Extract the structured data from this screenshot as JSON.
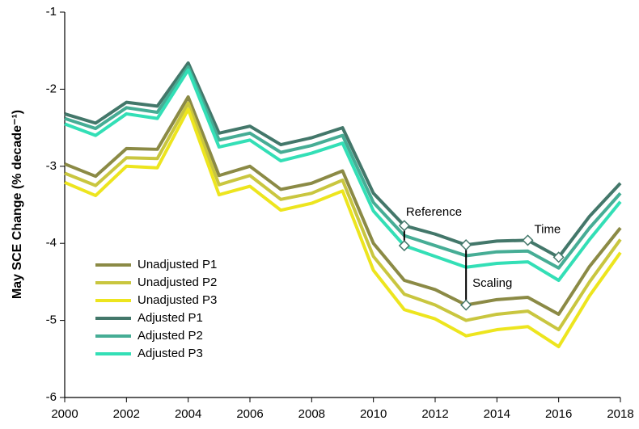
{
  "chart_data": {
    "type": "line",
    "ylabel": "May SCE Change (% decade⁻¹)",
    "x": [
      2000,
      2001,
      2002,
      2003,
      2004,
      2005,
      2006,
      2007,
      2008,
      2009,
      2010,
      2011,
      2012,
      2013,
      2014,
      2015,
      2016,
      2017,
      2018
    ],
    "xlim": [
      2000,
      2018
    ],
    "xticks": [
      2000,
      2002,
      2004,
      2006,
      2008,
      2010,
      2012,
      2014,
      2016,
      2018
    ],
    "ylim": [
      -6,
      -1
    ],
    "yticks": [
      -6,
      -5,
      -4,
      -3,
      -2,
      -1
    ],
    "legend": "lower left",
    "series": [
      {
        "name": "Unadjusted P1",
        "color": "#8b8a45",
        "values": [
          -2.97,
          -3.13,
          -2.77,
          -2.78,
          -2.1,
          -3.12,
          -3.0,
          -3.3,
          -3.22,
          -3.06,
          -4.0,
          -4.48,
          -4.6,
          -4.8,
          -4.73,
          -4.7,
          -4.92,
          -4.3,
          -3.8
        ]
      },
      {
        "name": "Unadjusted P2",
        "color": "#c9c63f",
        "values": [
          -3.09,
          -3.25,
          -2.89,
          -2.9,
          -2.18,
          -3.24,
          -3.12,
          -3.43,
          -3.35,
          -3.18,
          -4.17,
          -4.66,
          -4.8,
          -5.0,
          -4.92,
          -4.88,
          -5.12,
          -4.5,
          -3.95
        ]
      },
      {
        "name": "Unadjusted P3",
        "color": "#ede51e",
        "values": [
          -3.21,
          -3.38,
          -3.0,
          -3.02,
          -2.26,
          -3.37,
          -3.26,
          -3.57,
          -3.48,
          -3.32,
          -4.35,
          -4.86,
          -4.98,
          -5.2,
          -5.12,
          -5.08,
          -5.34,
          -4.68,
          -4.12
        ]
      },
      {
        "name": "Adjusted P1",
        "color": "#43776a",
        "values": [
          -2.32,
          -2.44,
          -2.17,
          -2.22,
          -1.66,
          -2.57,
          -2.48,
          -2.72,
          -2.63,
          -2.5,
          -3.35,
          -3.77,
          -3.88,
          -4.02,
          -3.97,
          -3.96,
          -4.18,
          -3.65,
          -3.22
        ]
      },
      {
        "name": "Adjusted P2",
        "color": "#46ad95",
        "values": [
          -2.38,
          -2.51,
          -2.24,
          -2.3,
          -1.71,
          -2.66,
          -2.57,
          -2.82,
          -2.73,
          -2.6,
          -3.47,
          -3.9,
          -4.03,
          -4.16,
          -4.11,
          -4.1,
          -4.32,
          -3.8,
          -3.35
        ]
      },
      {
        "name": "Adjusted P3",
        "color": "#33dfb6",
        "values": [
          -2.45,
          -2.6,
          -2.32,
          -2.38,
          -1.75,
          -2.75,
          -2.66,
          -2.93,
          -2.83,
          -2.7,
          -3.58,
          -4.03,
          -4.17,
          -4.31,
          -4.26,
          -4.24,
          -4.48,
          -3.95,
          -3.46
        ]
      }
    ],
    "annotations": [
      "Reference",
      "Scaling",
      "Time"
    ]
  }
}
